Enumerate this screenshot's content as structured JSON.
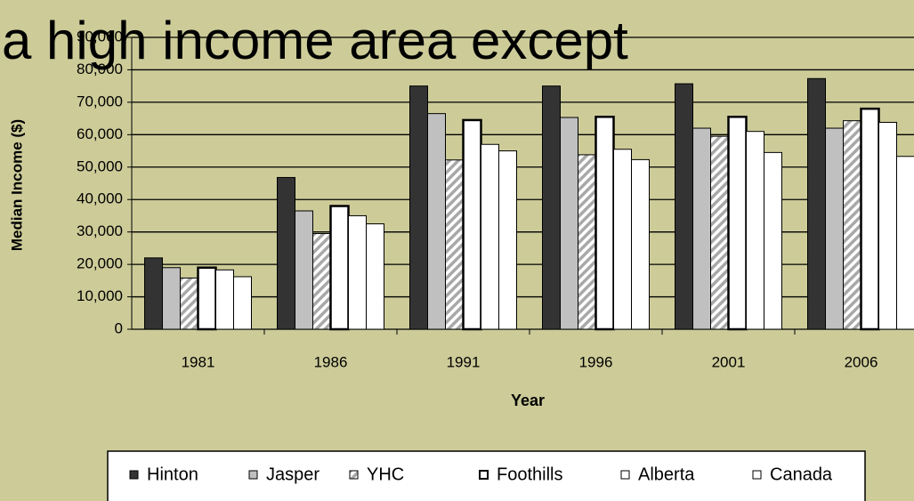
{
  "chart_data": {
    "type": "bar",
    "title": "a high income area except",
    "ylabel": "Median Income ($)",
    "xlabel": "Year",
    "categories": [
      "1981",
      "1986",
      "1991",
      "1996",
      "2001",
      "2006"
    ],
    "series": [
      {
        "name": "Hinton",
        "color": "#333333",
        "values": [
          22000,
          46800,
          75000,
          75000,
          75700,
          77300
        ]
      },
      {
        "name": "Jasper",
        "color": "#c0c0c0",
        "values": [
          19000,
          36500,
          66500,
          65300,
          62000,
          62000
        ]
      },
      {
        "name": "YHC",
        "color": "#a8a8a8",
        "pattern": "diagonal",
        "values": [
          15800,
          29500,
          52200,
          53800,
          59500,
          64300
        ]
      },
      {
        "name": "Foothills",
        "color": "#ffffff",
        "stroke_width": 2.5,
        "values": [
          19000,
          38000,
          64500,
          65500,
          65500,
          68000
        ]
      },
      {
        "name": "Alberta",
        "color": "#ffffff",
        "values": [
          18300,
          35000,
          57000,
          55500,
          61000,
          63800
        ]
      },
      {
        "name": "Canada",
        "color": "#ffffff",
        "values": [
          16200,
          32500,
          55000,
          52300,
          54500,
          53300
        ]
      }
    ],
    "ylim": [
      0,
      90000
    ],
    "yticks": [
      0,
      {
        "value": 10000,
        "label": "10,000"
      },
      {
        "value": 20000,
        "label": "20,000"
      },
      {
        "value": 30000,
        "label": "30,000"
      },
      {
        "value": 40000,
        "label": "40,000"
      },
      {
        "value": 50000,
        "label": "50,000"
      },
      {
        "value": 60000,
        "label": "60,000"
      },
      {
        "value": 70000,
        "label": "70,000"
      },
      {
        "value": 80000,
        "label": "80,000"
      },
      {
        "value": 90000,
        "label": "90,000"
      }
    ],
    "grid": true,
    "legend": "bottom"
  }
}
